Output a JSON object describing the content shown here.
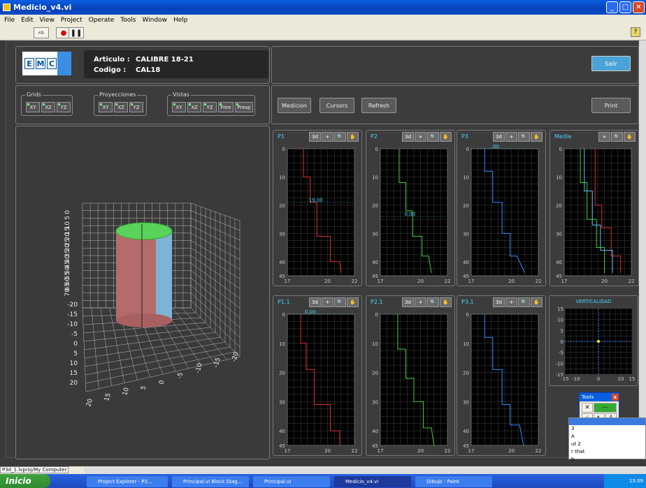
{
  "window": {
    "title": "Medicio_v4.vi"
  },
  "menu": [
    "File",
    "Edit",
    "View",
    "Project",
    "Operate",
    "Tools",
    "Window",
    "Help"
  ],
  "header": {
    "logo": [
      "E",
      "M",
      "C"
    ],
    "articulo_label": "Articulo :",
    "articulo_value": "CALIBRE 18-21",
    "codigo_label": "Codigo :",
    "codigo_value": "CAL18",
    "salir": "Salir"
  },
  "groups": {
    "grids": {
      "title": "Grids",
      "buttons": [
        "XY",
        "XZ",
        "YZ"
      ]
    },
    "proyecciones": {
      "title": "Proyecciones",
      "buttons": [
        "XY",
        "XZ",
        "YZ"
      ]
    },
    "vistas": {
      "title": "Vistas",
      "buttons": [
        "XY",
        "XZ",
        "YZ",
        "Free",
        "Presp"
      ]
    }
  },
  "actions": {
    "medicion": "Medicion",
    "cursors": "Cursors",
    "refresh": "Refresh",
    "print": "Print"
  },
  "chart_buttons": [
    "3d",
    "+",
    "🔍",
    "✋"
  ],
  "chart_data": [
    {
      "type": "line",
      "title": "P1",
      "x_ticks": [
        "17",
        "20",
        "22"
      ],
      "y_ticks": [
        "0",
        "10",
        "20",
        "30",
        "40",
        "45"
      ],
      "ylim": [
        0,
        45
      ],
      "xlim": [
        17,
        22
      ],
      "series": [
        {
          "color": "#e03030",
          "x": [
            18.2,
            18.2,
            18.7,
            18.7,
            19.2,
            19.2,
            20.2,
            20.2,
            20.9,
            21.0
          ],
          "y": [
            0,
            10,
            10,
            19,
            19,
            31,
            31,
            40,
            40,
            44
          ]
        }
      ],
      "cursor_label": "19,00",
      "cursor_y": 19
    },
    {
      "type": "line",
      "title": "P2",
      "x_ticks": [
        "17",
        "20",
        "22"
      ],
      "y_ticks": [
        "0",
        "10",
        "20",
        "30",
        "40",
        "45"
      ],
      "ylim": [
        0,
        45
      ],
      "xlim": [
        17,
        22
      ],
      "series": [
        {
          "color": "#40d040",
          "x": [
            18.4,
            18.4,
            18.9,
            18.9,
            19.4,
            19.4,
            20.1,
            20.1,
            20.6,
            20.8
          ],
          "y": [
            0,
            12,
            12,
            22,
            22,
            31,
            31,
            38,
            38,
            44
          ]
        }
      ],
      "cursor_label": "0,00",
      "cursor_y": 24
    },
    {
      "type": "line",
      "title": "P3",
      "x_ticks": [
        "17",
        "20",
        "22"
      ],
      "y_ticks": [
        "0",
        "10",
        "20",
        "30",
        "40",
        "45"
      ],
      "ylim": [
        0,
        45
      ],
      "xlim": [
        17,
        22
      ],
      "series": [
        {
          "color": "#3090ff",
          "x": [
            18.0,
            18.0,
            18.6,
            18.6,
            19.3,
            19.3,
            19.9,
            19.9,
            20.4,
            21.0
          ],
          "y": [
            0,
            8,
            8,
            19,
            19,
            30,
            30,
            38,
            38,
            44
          ]
        }
      ],
      "cursor_label": ",00",
      "cursor_y": 0
    },
    {
      "type": "line",
      "title": "Media",
      "x_ticks": [
        "17",
        "20",
        "22"
      ],
      "y_ticks": [
        "0",
        "10",
        "20",
        "30",
        "40",
        "45"
      ],
      "ylim": [
        0,
        45
      ],
      "xlim": [
        17,
        22
      ],
      "series": [
        {
          "color": "#e03030",
          "x": [
            19.3,
            19.3,
            19.8,
            19.8,
            20.5,
            20.5,
            21.2,
            21.2
          ],
          "y": [
            0,
            20,
            20,
            28,
            28,
            38,
            38,
            44
          ]
        },
        {
          "color": "#40d040",
          "x": [
            18.2,
            18.2,
            18.7,
            18.7,
            19.4,
            19.4,
            20.0,
            20.0
          ],
          "y": [
            0,
            12,
            12,
            25,
            25,
            35,
            35,
            44
          ]
        },
        {
          "color": "#60c0ff",
          "x": [
            18.5,
            18.5,
            19.1,
            19.1,
            19.7,
            19.7,
            20.6,
            20.6
          ],
          "y": [
            0,
            15,
            15,
            27,
            27,
            36,
            36,
            44
          ]
        }
      ]
    },
    {
      "type": "line",
      "title": "P1.1",
      "x_ticks": [
        "17",
        "20",
        "22"
      ],
      "y_ticks": [
        "0",
        "10",
        "20",
        "30",
        "40",
        "45"
      ],
      "ylim": [
        0,
        45
      ],
      "xlim": [
        17,
        22
      ],
      "series": [
        {
          "color": "#e03030",
          "x": [
            18.0,
            18.0,
            18.4,
            18.4,
            19.0,
            19.0,
            20.2,
            20.2,
            20.9,
            20.9
          ],
          "y": [
            0,
            10,
            10,
            19,
            19,
            31,
            31,
            40,
            40,
            45
          ]
        }
      ],
      "cursor_label": "0,00",
      "cursor_y": 0
    },
    {
      "type": "line",
      "title": "P2.1",
      "x_ticks": [
        "17",
        "20",
        "22"
      ],
      "y_ticks": [
        "0",
        "10",
        "20",
        "30",
        "40",
        "45"
      ],
      "ylim": [
        0,
        45
      ],
      "xlim": [
        17,
        22
      ],
      "series": [
        {
          "color": "#40d040",
          "x": [
            18.3,
            18.3,
            18.9,
            18.9,
            19.5,
            19.5,
            20.2,
            20.2,
            20.8,
            21.0
          ],
          "y": [
            0,
            12,
            12,
            22,
            22,
            30,
            30,
            39,
            39,
            45
          ]
        }
      ]
    },
    {
      "type": "line",
      "title": "P3.1",
      "x_ticks": [
        "17",
        "20",
        "22"
      ],
      "y_ticks": [
        "0",
        "10",
        "20",
        "30",
        "40",
        "45"
      ],
      "ylim": [
        0,
        45
      ],
      "xlim": [
        17,
        22
      ],
      "series": [
        {
          "color": "#3090ff",
          "x": [
            18.0,
            18.0,
            18.6,
            18.6,
            19.3,
            19.3,
            19.9,
            19.9,
            20.6,
            20.9
          ],
          "y": [
            0,
            8,
            8,
            19,
            19,
            31,
            31,
            38,
            38,
            45
          ]
        }
      ]
    },
    {
      "type": "scatter",
      "title": "VERTICALIDAD",
      "x_ticks": [
        "-15",
        "-10",
        "0",
        "10",
        "15"
      ],
      "y_ticks": [
        "15",
        "10",
        "5",
        "0",
        "-5",
        "-10",
        "-15"
      ],
      "xlim": [
        -15,
        15
      ],
      "ylim": [
        -15,
        15
      ],
      "points": [
        {
          "x": 0,
          "y": 0
        }
      ]
    }
  ],
  "view3d": {
    "y_ticks": [
      "0",
      "5",
      "10",
      "15",
      "20",
      "25",
      "30",
      "35",
      "40",
      "45",
      "50",
      "55",
      "60",
      "65",
      "70"
    ],
    "z_ticks": [
      "-20",
      "-15",
      "-10",
      "-5",
      "0",
      "5",
      "10",
      "15",
      "20"
    ],
    "x_ticks": [
      "20",
      "15",
      "10",
      "5",
      "0",
      "-5",
      "-10",
      "-15",
      "-20"
    ]
  },
  "tools": {
    "title": "Tools"
  },
  "context": {
    "lines": [
      "3",
      "A",
      "ut 2",
      "r that",
      "h"
    ]
  },
  "status": {
    "path": "P3d_1.lvproj/My Computer"
  },
  "taskbar": {
    "start": "Inicio",
    "items": [
      "Project Explorer - P3...",
      "Principal.vi Block Diag...",
      "Principal.vi",
      "Medicio_v4.vi",
      "Dibujo - Paint"
    ],
    "clock": "13:09"
  }
}
